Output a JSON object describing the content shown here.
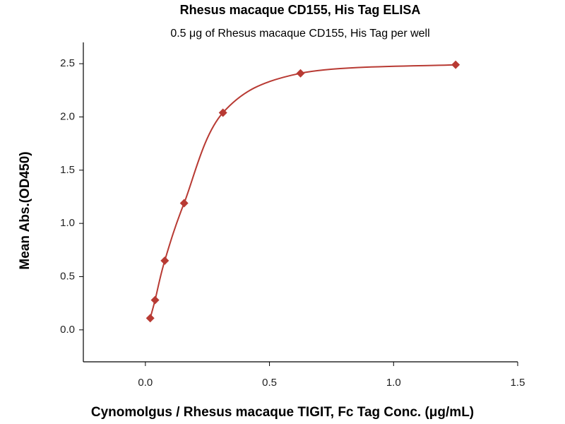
{
  "chart_data": {
    "type": "scatter",
    "title": "Rhesus macaque CD155, His Tag ELISA",
    "subtitle": "0.5 μg of Rhesus macaque CD155, His Tag per well",
    "x_label": "Cynomolgus / Rhesus macaque TIGIT, Fc Tag Conc. (μg/mL)",
    "y_label": "Mean Abs.(OD450)",
    "x": [
      0.0195,
      0.039,
      0.078,
      0.156,
      0.3125,
      0.625,
      1.25
    ],
    "values": [
      0.11,
      0.28,
      0.65,
      1.19,
      2.04,
      2.41,
      2.49
    ],
    "color": "#b83a33",
    "xlim": [
      -0.25,
      1.5
    ],
    "xticks": [
      {
        "value": 0,
        "label": "0.0"
      },
      {
        "value": 0.5,
        "label": "0.5"
      },
      {
        "value": 1,
        "label": "1.0"
      },
      {
        "value": 1.5,
        "label": "1.5"
      }
    ],
    "ylim": [
      -0.3,
      2.7
    ],
    "yticks": [
      {
        "value": 0,
        "label": "0.0"
      },
      {
        "value": 0.5,
        "label": "0.5"
      },
      {
        "value": 1,
        "label": "1.0"
      },
      {
        "value": 1.5,
        "label": "1.5"
      },
      {
        "value": 2,
        "label": "2.0"
      },
      {
        "value": 2.5,
        "label": "2.5"
      }
    ],
    "grid": false
  }
}
